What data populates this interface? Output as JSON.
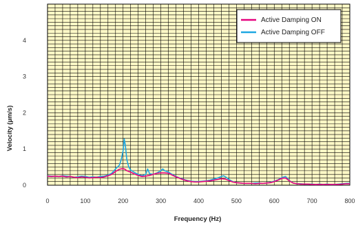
{
  "chart_data": {
    "type": "line",
    "title": "",
    "xlabel": "Frequency (Hz)",
    "ylabel": "Velocity (µm/s)",
    "xlim": [
      0,
      800
    ],
    "ylim": [
      0,
      5
    ],
    "x_ticks": [
      0,
      100,
      200,
      300,
      400,
      500,
      600,
      700,
      800
    ],
    "y_ticks": [
      0,
      1,
      2,
      3,
      4
    ],
    "grid": true,
    "legend_position": "top-right",
    "plot_background": "#fdf8c6",
    "grid_color": "#000000",
    "series": [
      {
        "name": "Active Damping ON",
        "color": "#e6007e",
        "x": [
          0,
          10,
          20,
          30,
          40,
          50,
          60,
          70,
          80,
          90,
          100,
          110,
          120,
          130,
          140,
          150,
          160,
          170,
          180,
          190,
          200,
          205,
          210,
          220,
          230,
          240,
          250,
          260,
          270,
          280,
          290,
          300,
          310,
          320,
          330,
          340,
          350,
          360,
          370,
          380,
          390,
          400,
          410,
          420,
          430,
          440,
          450,
          460,
          470,
          480,
          490,
          500,
          510,
          520,
          530,
          540,
          550,
          560,
          570,
          580,
          590,
          600,
          610,
          620,
          630,
          640,
          650,
          660,
          670,
          680,
          690,
          700,
          710,
          720,
          730,
          740,
          750,
          760,
          770,
          780,
          790,
          800
        ],
        "values": [
          0.25,
          0.24,
          0.25,
          0.24,
          0.25,
          0.23,
          0.24,
          0.22,
          0.21,
          0.23,
          0.22,
          0.2,
          0.21,
          0.22,
          0.21,
          0.23,
          0.26,
          0.3,
          0.38,
          0.44,
          0.46,
          0.44,
          0.4,
          0.36,
          0.31,
          0.27,
          0.24,
          0.25,
          0.27,
          0.3,
          0.33,
          0.34,
          0.34,
          0.33,
          0.28,
          0.23,
          0.19,
          0.15,
          0.12,
          0.1,
          0.09,
          0.09,
          0.1,
          0.11,
          0.12,
          0.14,
          0.16,
          0.18,
          0.17,
          0.13,
          0.09,
          0.07,
          0.06,
          0.05,
          0.05,
          0.05,
          0.04,
          0.05,
          0.05,
          0.06,
          0.07,
          0.1,
          0.14,
          0.19,
          0.2,
          0.12,
          0.06,
          0.04,
          0.03,
          0.03,
          0.03,
          0.02,
          0.02,
          0.02,
          0.02,
          0.02,
          0.02,
          0.02,
          0.02,
          0.03,
          0.04,
          0.04
        ]
      },
      {
        "name": "Active Damping OFF",
        "color": "#1ea7e1",
        "x": [
          0,
          10,
          20,
          30,
          40,
          50,
          60,
          70,
          80,
          90,
          100,
          110,
          120,
          130,
          140,
          150,
          160,
          170,
          180,
          190,
          195,
          200,
          203,
          206,
          210,
          215,
          220,
          230,
          240,
          250,
          260,
          265,
          270,
          280,
          290,
          300,
          305,
          310,
          320,
          330,
          340,
          350,
          360,
          370,
          380,
          390,
          400,
          410,
          420,
          430,
          440,
          450,
          460,
          465,
          470,
          480,
          490,
          500,
          510,
          520,
          530,
          540,
          550,
          560,
          570,
          580,
          590,
          600,
          610,
          620,
          630,
          640,
          650,
          660,
          670,
          680,
          690,
          700,
          710,
          720,
          730,
          740,
          750,
          760,
          770,
          780,
          790,
          800
        ],
        "values": [
          0.26,
          0.25,
          0.25,
          0.24,
          0.26,
          0.25,
          0.24,
          0.22,
          0.23,
          0.25,
          0.24,
          0.22,
          0.23,
          0.22,
          0.24,
          0.25,
          0.28,
          0.33,
          0.45,
          0.55,
          0.7,
          0.95,
          1.28,
          1.1,
          0.7,
          0.5,
          0.42,
          0.35,
          0.3,
          0.26,
          0.3,
          0.45,
          0.32,
          0.3,
          0.34,
          0.4,
          0.45,
          0.4,
          0.36,
          0.3,
          0.24,
          0.2,
          0.16,
          0.13,
          0.11,
          0.1,
          0.1,
          0.11,
          0.12,
          0.14,
          0.17,
          0.2,
          0.24,
          0.26,
          0.24,
          0.16,
          0.1,
          0.07,
          0.06,
          0.05,
          0.05,
          0.05,
          0.06,
          0.06,
          0.05,
          0.06,
          0.08,
          0.11,
          0.15,
          0.21,
          0.24,
          0.13,
          0.06,
          0.04,
          0.04,
          0.03,
          0.03,
          0.03,
          0.02,
          0.03,
          0.02,
          0.03,
          0.02,
          0.02,
          0.03,
          0.04,
          0.05,
          0.05
        ]
      }
    ]
  }
}
